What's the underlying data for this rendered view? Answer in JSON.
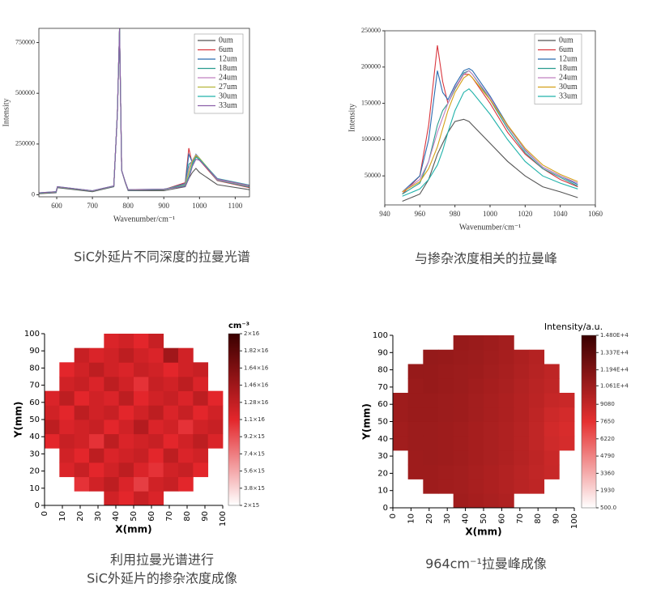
{
  "captions": [
    "SiC外延片不同深度的拉曼光谱",
    "与掺杂浓度相关的拉曼峰",
    "利用拉曼光谱进行",
    "SiC外延片的掺杂浓度成像",
    "964cm⁻¹拉曼峰成像"
  ],
  "chart_data": [
    {
      "type": "line",
      "y_label": "Intensity",
      "x_label": "Wavenumber/cm⁻¹",
      "legend": "upper right",
      "xlim": [
        550,
        1140
      ],
      "ylim": [
        -10000,
        820000
      ],
      "xticks": [
        600,
        700,
        800,
        900,
        1000,
        1100
      ],
      "yticks": [
        0,
        250000,
        500000,
        750000
      ],
      "x": [
        550,
        598,
        602,
        700,
        760,
        770,
        776,
        782,
        792,
        800,
        900,
        960,
        970,
        980,
        990,
        1000,
        1050,
        1140
      ],
      "series": [
        {
          "name": "0um",
          "color": "#555555",
          "values": [
            5000,
            10000,
            35000,
            15000,
            40000,
            400000,
            820000,
            120000,
            60000,
            20000,
            20000,
            40000,
            80000,
            110000,
            130000,
            110000,
            50000,
            25000
          ]
        },
        {
          "name": "6um",
          "color": "#d9363e",
          "values": [
            8000,
            12000,
            38000,
            18000,
            42000,
            400000,
            820000,
            120000,
            62000,
            22000,
            25000,
            60000,
            230000,
            150000,
            190000,
            170000,
            70000,
            35000
          ]
        },
        {
          "name": "12um",
          "color": "#2b6cb0",
          "values": [
            8000,
            12000,
            38000,
            18000,
            42000,
            400000,
            820000,
            120000,
            62000,
            22000,
            25000,
            55000,
            200000,
            160000,
            200000,
            180000,
            75000,
            40000
          ]
        },
        {
          "name": "18um",
          "color": "#2a9d8f",
          "values": [
            8000,
            13000,
            38000,
            18000,
            42000,
            400000,
            820000,
            120000,
            62000,
            22000,
            25000,
            50000,
            150000,
            165000,
            195000,
            175000,
            72000,
            38000
          ]
        },
        {
          "name": "24um",
          "color": "#c080c0",
          "values": [
            9000,
            14000,
            39000,
            19000,
            43000,
            400000,
            820000,
            120000,
            63000,
            23000,
            26000,
            50000,
            130000,
            170000,
            198000,
            178000,
            74000,
            42000
          ]
        },
        {
          "name": "27um",
          "color": "#b5b53a",
          "values": [
            9000,
            14000,
            39000,
            19000,
            43000,
            400000,
            820000,
            120000,
            63000,
            24000,
            27000,
            48000,
            110000,
            165000,
            195000,
            180000,
            78000,
            45000
          ]
        },
        {
          "name": "30um",
          "color": "#20b2aa",
          "values": [
            10000,
            15000,
            40000,
            20000,
            44000,
            400000,
            820000,
            120000,
            64000,
            25000,
            28000,
            45000,
            90000,
            150000,
            185000,
            175000,
            80000,
            48000
          ]
        },
        {
          "name": "33um",
          "color": "#8b5fa8",
          "values": [
            10000,
            15000,
            40000,
            20000,
            44000,
            400000,
            820000,
            120000,
            64000,
            25000,
            28000,
            42000,
            80000,
            140000,
            175000,
            170000,
            78000,
            46000
          ]
        }
      ]
    },
    {
      "type": "line",
      "y_label": "Intensity",
      "x_label": "Wavenumber/cm⁻¹",
      "legend": "upper right",
      "xlim": [
        940,
        1060
      ],
      "ylim": [
        10000,
        250000
      ],
      "xticks": [
        940,
        960,
        980,
        1000,
        1020,
        1040,
        1060
      ],
      "yticks": [
        50000,
        100000,
        150000,
        200000,
        250000
      ],
      "x": [
        950,
        960,
        965,
        970,
        973,
        976,
        980,
        985,
        988,
        990,
        1000,
        1010,
        1020,
        1030,
        1040,
        1050
      ],
      "series": [
        {
          "name": "0um",
          "color": "#555555",
          "values": [
            15000,
            25000,
            45000,
            80000,
            95000,
            110000,
            125000,
            128000,
            125000,
            120000,
            95000,
            70000,
            50000,
            35000,
            28000,
            20000
          ]
        },
        {
          "name": "6um",
          "color": "#d9363e",
          "values": [
            25000,
            50000,
            120000,
            230000,
            180000,
            150000,
            170000,
            190000,
            190000,
            185000,
            150000,
            110000,
            80000,
            60000,
            45000,
            35000
          ]
        },
        {
          "name": "12um",
          "color": "#2b6cb0",
          "values": [
            28000,
            50000,
            100000,
            195000,
            165000,
            155000,
            175000,
            195000,
            198000,
            195000,
            160000,
            120000,
            85000,
            62000,
            50000,
            38000
          ]
        },
        {
          "name": "18um",
          "color": "#2a9d8f",
          "values": [
            25000,
            40000,
            70000,
            120000,
            140000,
            150000,
            170000,
            192000,
            195000,
            190000,
            155000,
            115000,
            82000,
            60000,
            48000,
            36000
          ]
        },
        {
          "name": "24um",
          "color": "#c080c0",
          "values": [
            28000,
            45000,
            70000,
            110000,
            130000,
            150000,
            172000,
            190000,
            195000,
            190000,
            158000,
            118000,
            86000,
            62000,
            50000,
            40000
          ]
        },
        {
          "name": "30um",
          "color": "#d4a017",
          "values": [
            28000,
            42000,
            60000,
            90000,
            115000,
            140000,
            165000,
            185000,
            190000,
            185000,
            155000,
            120000,
            88000,
            65000,
            52000,
            42000
          ]
        },
        {
          "name": "33um",
          "color": "#20b2aa",
          "values": [
            22000,
            32000,
            45000,
            65000,
            85000,
            110000,
            140000,
            165000,
            170000,
            165000,
            135000,
            100000,
            70000,
            50000,
            40000,
            32000
          ]
        }
      ]
    },
    {
      "type": "heatmap",
      "x_label": "X(mm)",
      "y_label": "Y(mm)",
      "xlim": [
        0,
        100
      ],
      "ylim": [
        0,
        100
      ],
      "xticks": [
        0,
        10,
        20,
        30,
        40,
        50,
        60,
        70,
        80,
        90,
        100
      ],
      "yticks": [
        0,
        10,
        20,
        30,
        40,
        50,
        60,
        70,
        80,
        90,
        100
      ],
      "colorbar_title": "cm⁻³",
      "zlim": [
        2000000000000000.0,
        2e+16
      ],
      "colorscale": [
        "#ffffff",
        "#e3262b",
        "#3a0000"
      ],
      "zticks": [
        {
          "value": 2000000000000000.0,
          "label": "2×15"
        },
        {
          "value": 3800000000000000.0,
          "label": "3.8×15"
        },
        {
          "value": 5600000000000000.0,
          "label": "5.6×15"
        },
        {
          "value": 7400000000000000.0,
          "label": "7.4×15"
        },
        {
          "value": 9200000000000000.0,
          "label": "9.2×15"
        },
        {
          "value": 1.1e+16,
          "label": "1.1×16"
        },
        {
          "value": 1.28e+16,
          "label": "1.28×16"
        },
        {
          "value": 1.46e+16,
          "label": "1.46×16"
        },
        {
          "value": 1.64e+16,
          "label": "1.64×16"
        },
        {
          "value": 1.82e+16,
          "label": "1.82×16"
        },
        {
          "value": 2e+16,
          "label": "2×16"
        }
      ],
      "z": [
        [
          null,
          null,
          null,
          null,
          1.2e+16,
          1.1e+16,
          1.25e+16,
          1.15e+16,
          null,
          null,
          null,
          null
        ],
        [
          null,
          null,
          1.05e+16,
          1.2e+16,
          1.3e+16,
          1.15e+16,
          1e+16,
          1.2e+16,
          1.25e+16,
          1.1e+16,
          null,
          null
        ],
        [
          null,
          1.15e+16,
          1.25e+16,
          1.1e+16,
          1.2e+16,
          1.3e+16,
          1.15e+16,
          1.05e+16,
          1.2e+16,
          1.25e+16,
          1.1e+16,
          null
        ],
        [
          null,
          1.2e+16,
          1.1e+16,
          1.3e+16,
          1.15e+16,
          1.2e+16,
          1.25e+16,
          1.1e+16,
          1.3e+16,
          1.15e+16,
          1.2e+16,
          null
        ],
        [
          1.1e+16,
          1.25e+16,
          1.2e+16,
          1.05e+16,
          1.3e+16,
          1.15e+16,
          1.2e+16,
          1.25e+16,
          1.1e+16,
          1.2e+16,
          1.3e+16,
          1.15e+16
        ],
        [
          1.3e+16,
          1.15e+16,
          1.2e+16,
          1.25e+16,
          1.1e+16,
          1.2e+16,
          1.35e+16,
          1.15e+16,
          1.2e+16,
          1.05e+16,
          1.2e+16,
          1.25e+16
        ],
        [
          1.2e+16,
          1.1e+16,
          1.3e+16,
          1.2e+16,
          1.25e+16,
          1.1e+16,
          1.2e+16,
          1.3e+16,
          1.15e+16,
          1.25e+16,
          1.1e+16,
          1.2e+16
        ],
        [
          1.15e+16,
          1.3e+16,
          1.1e+16,
          1.2e+16,
          1.15e+16,
          1.3e+16,
          1.1e+16,
          1.2e+16,
          1.25e+16,
          1.15e+16,
          1.3e+16,
          1.1e+16
        ],
        [
          null,
          1.2e+16,
          1.25e+16,
          1.15e+16,
          1.3e+16,
          1.2e+16,
          1.05e+16,
          1.25e+16,
          1.2e+16,
          1.3e+16,
          1.15e+16,
          null
        ],
        [
          null,
          1.1e+16,
          1.2e+16,
          1.3e+16,
          1.2e+16,
          1.15e+16,
          1.25e+16,
          1.2e+16,
          1.1e+16,
          1.2e+16,
          1.25e+16,
          null
        ],
        [
          null,
          null,
          1.25e+16,
          1.15e+16,
          1.2e+16,
          1.3e+16,
          1.2e+16,
          1.15e+16,
          1.45e+16,
          1.2e+16,
          null,
          null
        ],
        [
          null,
          null,
          null,
          null,
          1.15e+16,
          1.2e+16,
          1.1e+16,
          1.25e+16,
          null,
          null,
          null,
          null
        ]
      ]
    },
    {
      "type": "heatmap",
      "x_label": "X(mm)",
      "y_label": "Y(mm)",
      "xlim": [
        0,
        100
      ],
      "ylim": [
        0,
        100
      ],
      "xticks": [
        0,
        10,
        20,
        30,
        40,
        50,
        60,
        70,
        80,
        90,
        100
      ],
      "yticks": [
        0,
        10,
        20,
        30,
        40,
        50,
        60,
        70,
        80,
        90,
        100
      ],
      "colorbar_title": "Intensity/a.u.",
      "zlim": [
        500,
        14800
      ],
      "colorscale": [
        "#ffffff",
        "#e53030",
        "#3a0000"
      ],
      "zticks": [
        {
          "value": 500,
          "label": "500.0"
        },
        1930,
        3360,
        4790,
        6220,
        7650,
        9080,
        {
          "value": 10610,
          "label": "1.061E+4"
        },
        {
          "value": 11940,
          "label": "1.194E+4"
        },
        {
          "value": 13370,
          "label": "1.337E+4"
        },
        {
          "value": 14800,
          "label": "1.480E+4"
        }
      ],
      "z": [
        [
          null,
          null,
          null,
          null,
          10500,
          10300,
          10100,
          9900,
          null,
          null,
          null,
          null
        ],
        [
          null,
          null,
          10600,
          10500,
          10400,
          10200,
          10000,
          9800,
          9500,
          9300,
          null,
          null
        ],
        [
          null,
          10600,
          10600,
          10500,
          10400,
          10200,
          10000,
          9800,
          9500,
          9200,
          8900,
          null
        ],
        [
          null,
          10600,
          10700,
          10600,
          10500,
          10300,
          10100,
          9900,
          9600,
          9300,
          8800,
          null
        ],
        [
          10500,
          10700,
          10700,
          10600,
          10500,
          10300,
          10100,
          9900,
          9600,
          9200,
          8600,
          8300
        ],
        [
          10500,
          10700,
          10700,
          10600,
          10500,
          10300,
          10100,
          9900,
          9600,
          9200,
          8500,
          8200
        ],
        [
          10600,
          10800,
          10800,
          10700,
          10600,
          10400,
          10200,
          10000,
          9700,
          9300,
          8700,
          8400
        ],
        [
          10600,
          10800,
          10800,
          10700,
          10600,
          10400,
          10200,
          10000,
          9700,
          9400,
          9000,
          8800
        ],
        [
          null,
          10800,
          10900,
          10800,
          10700,
          10500,
          10300,
          10100,
          9800,
          9500,
          9200,
          null
        ],
        [
          null,
          10900,
          10900,
          10800,
          10700,
          10600,
          10400,
          10200,
          9900,
          9600,
          9300,
          null
        ],
        [
          null,
          null,
          11000,
          10900,
          10800,
          10700,
          10500,
          10300,
          10000,
          9700,
          null,
          null
        ],
        [
          null,
          null,
          null,
          null,
          10900,
          10800,
          10600,
          10400,
          null,
          null,
          null,
          null
        ]
      ]
    }
  ]
}
